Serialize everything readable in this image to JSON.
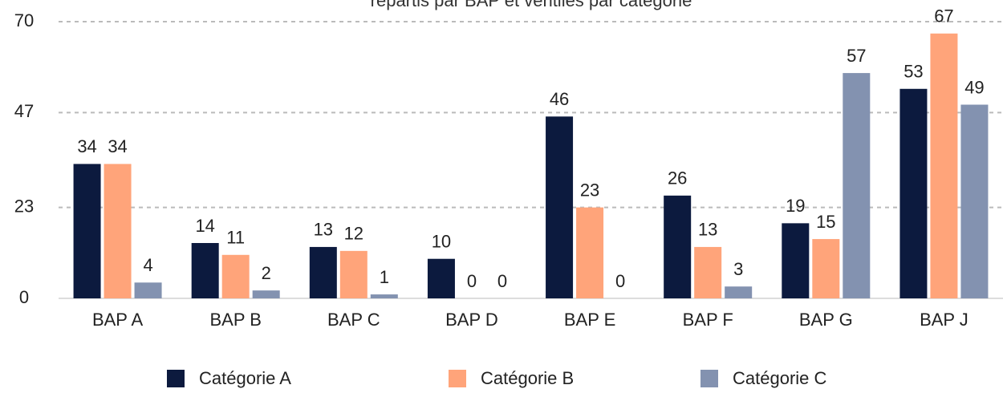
{
  "chart_data": {
    "type": "bar",
    "title": "répartis par BAP et ventilés par catégorie",
    "categories": [
      "BAP A",
      "BAP B",
      "BAP C",
      "BAP D",
      "BAP E",
      "BAP F",
      "BAP G",
      "BAP J"
    ],
    "series": [
      {
        "name": "Catégorie A",
        "color": "#0c1a3e",
        "label_color": "#0c1a3e",
        "values": [
          34,
          14,
          13,
          10,
          46,
          26,
          19,
          53
        ]
      },
      {
        "name": "Catégorie B",
        "color": "#ffa47a",
        "label_color": "#f07c48",
        "values": [
          34,
          11,
          12,
          0,
          23,
          13,
          15,
          67
        ]
      },
      {
        "name": "Catégorie C",
        "color": "#8392b0",
        "label_color": "#8392b0",
        "values": [
          4,
          2,
          1,
          0,
          0,
          3,
          57,
          49
        ]
      }
    ],
    "ylim": [
      0,
      70
    ],
    "yticks": [
      0,
      23,
      47,
      70
    ],
    "grid": true,
    "legend": "bottom"
  }
}
